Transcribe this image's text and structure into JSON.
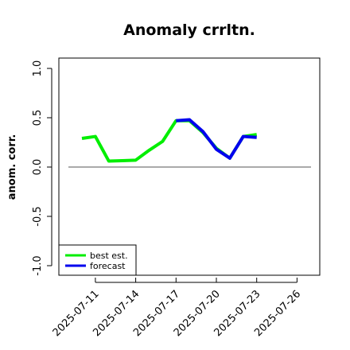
{
  "chart_data": {
    "type": "line",
    "title": "Anomaly crrltn.",
    "xlabel": "",
    "ylabel": "anom. corr.",
    "ylim": [
      -1.0,
      1.0
    ],
    "yticks": [
      -1.0,
      -0.5,
      0.0,
      0.5,
      1.0
    ],
    "ytick_labels": [
      "-1.0",
      "-0.5",
      "0.0",
      "0.5",
      "1.0"
    ],
    "xticks": [
      "2025-07-11",
      "2025-07-14",
      "2025-07-17",
      "2025-07-20",
      "2025-07-23",
      "2025-07-26"
    ],
    "highlighted_xtick": "2025-07-17",
    "highlight_color": "#228b22",
    "reference_line": 0.0,
    "legend_position": "bottom-left",
    "x": [
      "2025-07-10",
      "2025-07-11",
      "2025-07-12",
      "2025-07-13",
      "2025-07-14",
      "2025-07-15",
      "2025-07-16",
      "2025-07-17",
      "2025-07-18",
      "2025-07-19",
      "2025-07-20",
      "2025-07-21",
      "2025-07-22",
      "2025-07-23"
    ],
    "series": [
      {
        "name": "best est.",
        "color": "#00ee00",
        "values": [
          0.29,
          0.31,
          0.06,
          0.065,
          0.07,
          0.17,
          0.26,
          0.47,
          0.47,
          0.35,
          0.19,
          0.09,
          0.31,
          0.33
        ]
      },
      {
        "name": "forecast",
        "color": "#0000ee",
        "values": [
          null,
          null,
          null,
          null,
          null,
          null,
          null,
          0.47,
          0.48,
          0.36,
          0.18,
          0.09,
          0.31,
          0.3
        ]
      }
    ]
  }
}
